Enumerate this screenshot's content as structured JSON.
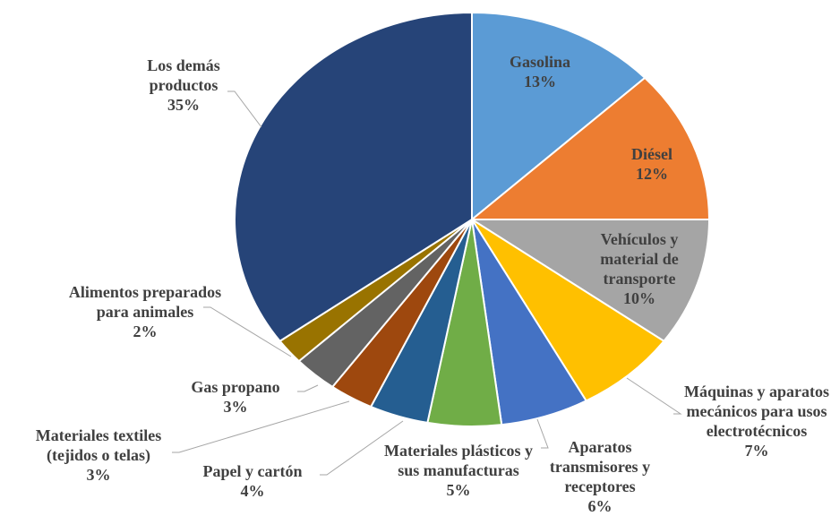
{
  "chart_data": {
    "type": "pie",
    "categories": [
      "Gasolina",
      "Diésel",
      "Vehículos y material de transporte",
      "Máquinas y aparatos mecánicos para usos electrotécnicos",
      "Aparatos transmisores y receptores",
      "Materiales plásticos y sus manufacturas",
      "Papel y cartón",
      "Materiales textiles (tejidos o telas)",
      "Gas propano",
      "Alimentos preparados para animales",
      "Los demás productos"
    ],
    "values": [
      13,
      12,
      10,
      7,
      6,
      5,
      4,
      3,
      3,
      2,
      35
    ],
    "value_labels": [
      "13%",
      "12%",
      "10%",
      "7%",
      "6%",
      "5%",
      "4%",
      "3%",
      "3%",
      "2%",
      "35%"
    ],
    "colors": [
      "#5b9bd5",
      "#ed7d31",
      "#a5a5a5",
      "#ffc000",
      "#4472c4",
      "#70ad47",
      "#255e91",
      "#9e480e",
      "#636363",
      "#997300",
      "#264478"
    ]
  }
}
